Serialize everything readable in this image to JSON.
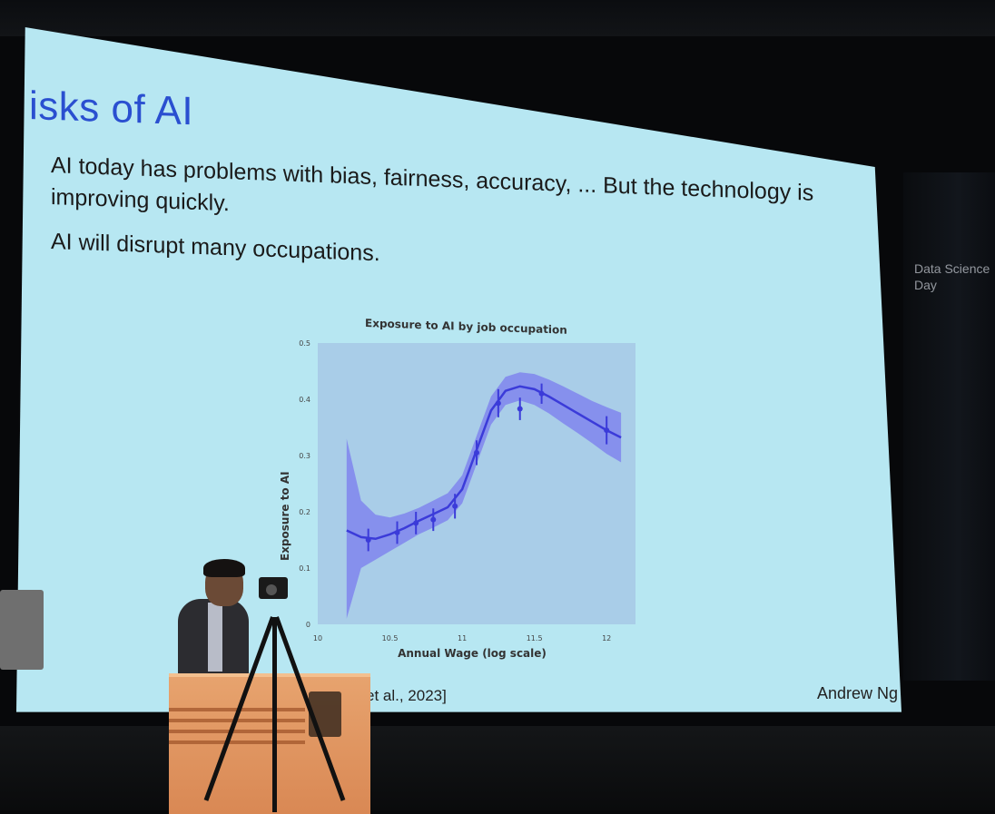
{
  "slide": {
    "title": "isks of AI",
    "bullets": [
      "AI today has problems with bias, fairness, accuracy, ... But the technology is",
      "improving quickly.",
      "AI will disrupt many occupations."
    ],
    "citation": "et al., 2023]",
    "author": "Andrew Ng",
    "colors": {
      "screen": "#b7e7f2",
      "title": "#2a4fd0",
      "line": "#3b3bd9",
      "band": "#7b7bef",
      "plot_bg": "#a9cde8"
    }
  },
  "side_sign": {
    "line1": "Data Science",
    "line2": "Day"
  },
  "chart_data": {
    "type": "line",
    "title": "Exposure to AI by job occupation",
    "xlabel": "Annual Wage (log scale)",
    "ylabel": "Exposure to AI",
    "x_ticks": [
      "10",
      "10.5",
      "11",
      "11.5",
      "12"
    ],
    "y_ticks": [
      "0",
      "0.1",
      "0.2",
      "0.3",
      "0.4",
      "0.5"
    ],
    "xlim": [
      10,
      12.2
    ],
    "ylim": [
      0,
      0.5
    ],
    "grid": false,
    "series": [
      {
        "x": [
          10.2,
          10.3,
          10.4,
          10.5,
          10.6,
          10.7,
          10.8,
          10.9,
          11.0,
          11.1,
          11.2,
          11.3,
          11.4,
          11.5,
          11.6,
          11.7,
          11.8,
          11.9,
          12.0,
          12.1
        ],
        "y": [
          0.167,
          0.155,
          0.152,
          0.16,
          0.171,
          0.184,
          0.196,
          0.208,
          0.24,
          0.31,
          0.38,
          0.415,
          0.423,
          0.418,
          0.405,
          0.39,
          0.375,
          0.36,
          0.345,
          0.332
        ],
        "lower": [
          0.01,
          0.1,
          0.115,
          0.13,
          0.145,
          0.16,
          0.172,
          0.185,
          0.215,
          0.285,
          0.355,
          0.39,
          0.398,
          0.39,
          0.375,
          0.357,
          0.34,
          0.322,
          0.303,
          0.288
        ],
        "upper": [
          0.33,
          0.22,
          0.195,
          0.19,
          0.197,
          0.207,
          0.22,
          0.233,
          0.265,
          0.335,
          0.405,
          0.44,
          0.448,
          0.445,
          0.435,
          0.423,
          0.41,
          0.397,
          0.386,
          0.376
        ]
      }
    ],
    "points": [
      {
        "x": 10.35,
        "y": 0.15,
        "err": 0.02
      },
      {
        "x": 10.55,
        "y": 0.163,
        "err": 0.02
      },
      {
        "x": 10.68,
        "y": 0.18,
        "err": 0.02
      },
      {
        "x": 10.8,
        "y": 0.186,
        "err": 0.02
      },
      {
        "x": 10.95,
        "y": 0.21,
        "err": 0.022
      },
      {
        "x": 11.1,
        "y": 0.305,
        "err": 0.022
      },
      {
        "x": 11.25,
        "y": 0.393,
        "err": 0.025
      },
      {
        "x": 11.4,
        "y": 0.383,
        "err": 0.02
      },
      {
        "x": 11.55,
        "y": 0.41,
        "err": 0.018
      },
      {
        "x": 12.0,
        "y": 0.345,
        "err": 0.025
      }
    ]
  }
}
